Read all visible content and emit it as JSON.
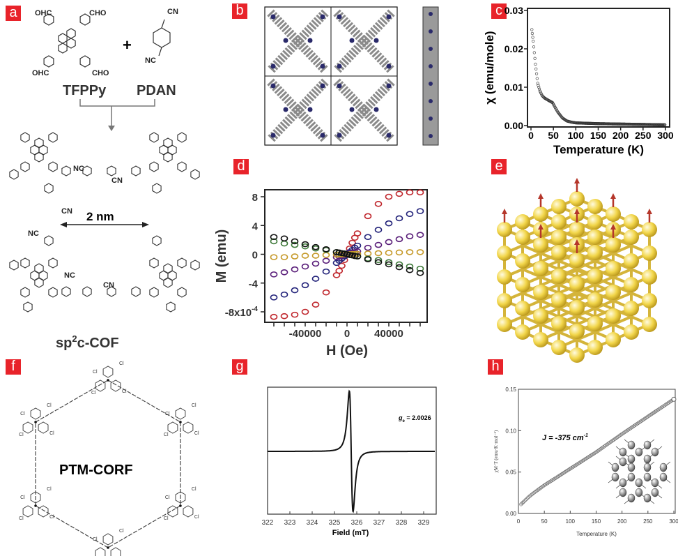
{
  "panel_labels": [
    "a",
    "b",
    "c",
    "d",
    "e",
    "f",
    "g",
    "h"
  ],
  "panel_a": {
    "aldehyde_groups": [
      "OHC",
      "CHO",
      "OHC",
      "CHO"
    ],
    "nitrile_groups": [
      "CN",
      "NC"
    ],
    "plus": "+",
    "monomer1": "TFPPy",
    "monomer2": "PDAN",
    "pore_size": "2 nm",
    "product_prefix": "sp",
    "product_sup": "2",
    "product_suffix": "c-COF",
    "linker_labels": [
      "NC",
      "CN",
      "CN",
      "NC",
      "NC",
      "CN"
    ]
  },
  "panel_f": {
    "title": "PTM-CORF",
    "atom": "Cl"
  },
  "colors": {
    "label_bg": "#e8232a",
    "red": "#c0282e",
    "navy": "#23237a",
    "purple": "#5a1f7a",
    "gold": "#c69a2a",
    "green": "#3f7a3a",
    "black": "#111111",
    "sphere": "#f2d64a"
  },
  "chart_data": [
    {
      "id": "c",
      "type": "scatter",
      "xlabel": "Temperature (K)",
      "ylabel": "χ (emu/mole)",
      "xlim": [
        0,
        300
      ],
      "ylim": [
        0,
        0.03
      ],
      "xticks": [
        "0",
        "50",
        "100",
        "150",
        "200",
        "250",
        "300"
      ],
      "yticks": [
        "0.00",
        "0.01",
        "0.02",
        "0.03"
      ],
      "x": [
        2,
        5,
        10,
        15,
        20,
        25,
        30,
        40,
        48,
        55,
        60,
        70,
        80,
        90,
        100,
        150,
        200,
        250,
        300
      ],
      "y": [
        0.025,
        0.022,
        0.016,
        0.011,
        0.009,
        0.0078,
        0.0072,
        0.0065,
        0.006,
        0.0045,
        0.0035,
        0.002,
        0.0012,
        0.0009,
        0.0007,
        0.0005,
        0.0004,
        0.0003,
        0.0002
      ]
    },
    {
      "id": "d",
      "type": "scatter",
      "xlabel": "H (Oe)",
      "ylabel": "M (emu)",
      "xlim": [
        -75000,
        75000
      ],
      "ylim": [
        -9.5,
        9.5
      ],
      "yunit_note": "x10^-4",
      "xticks": [
        "-40000",
        "0",
        "40000"
      ],
      "yticks": [
        "-8x10",
        "-4",
        "0",
        "4",
        "8"
      ],
      "ytick_exp": "-4",
      "x": [
        -70000,
        -60000,
        -50000,
        -40000,
        -30000,
        -20000,
        -10000,
        -7500,
        -5000,
        -2500,
        0,
        2500,
        5000,
        7500,
        10000,
        20000,
        30000,
        40000,
        50000,
        60000,
        70000
      ],
      "series": [
        {
          "name": "red",
          "color": "#c0282e",
          "values": [
            -8.7,
            -8.6,
            -8.4,
            -8.0,
            -7.0,
            -5.3,
            -2.9,
            -2.3,
            -1.6,
            -0.8,
            0,
            0.8,
            1.6,
            2.3,
            2.9,
            5.3,
            7.0,
            8.0,
            8.4,
            8.6,
            8.6
          ]
        },
        {
          "name": "navy",
          "color": "#23237a",
          "values": [
            -6.0,
            -5.6,
            -5.0,
            -4.3,
            -3.4,
            -2.4,
            -1.2,
            -0.9,
            -0.6,
            -0.3,
            0,
            0.3,
            0.6,
            0.9,
            1.2,
            2.4,
            3.4,
            4.3,
            5.0,
            5.6,
            6.0
          ]
        },
        {
          "name": "purple",
          "color": "#5a1f7a",
          "values": [
            -2.8,
            -2.5,
            -2.1,
            -1.7,
            -1.3,
            -0.9,
            -0.4,
            -0.3,
            -0.2,
            -0.1,
            0,
            0.1,
            0.2,
            0.3,
            0.4,
            0.9,
            1.3,
            1.7,
            2.1,
            2.5,
            2.7
          ]
        },
        {
          "name": "gold",
          "color": "#c69a2a",
          "values": [
            -0.4,
            -0.4,
            -0.3,
            -0.2,
            -0.2,
            -0.1,
            -0.05,
            -0.04,
            -0.03,
            -0.01,
            0,
            0.01,
            0.03,
            0.04,
            0.05,
            0.1,
            0.15,
            0.2,
            0.25,
            0.3,
            0.3
          ]
        },
        {
          "name": "green",
          "color": "#3f7a3a",
          "values": [
            1.8,
            1.5,
            1.3,
            1.1,
            0.8,
            0.6,
            0.3,
            0.2,
            0.15,
            0.1,
            0,
            -0.1,
            -0.15,
            -0.2,
            -0.3,
            -0.6,
            -0.8,
            -1.1,
            -1.4,
            -1.7,
            -2.0
          ]
        },
        {
          "name": "black",
          "color": "#111111",
          "values": [
            2.4,
            2.2,
            1.8,
            1.4,
            1.0,
            0.7,
            0.3,
            0.25,
            0.15,
            0.1,
            0,
            -0.1,
            -0.15,
            -0.25,
            -0.3,
            -0.7,
            -1.1,
            -1.4,
            -1.8,
            -2.2,
            -2.6
          ]
        }
      ]
    },
    {
      "id": "g",
      "type": "line",
      "xlabel": "Field (mT)",
      "ylabel": "",
      "xlim": [
        322,
        329.5
      ],
      "ylim": [
        -1.2,
        1.2
      ],
      "xticks": [
        "322",
        "323",
        "324",
        "325",
        "326",
        "327",
        "328",
        "329"
      ],
      "annotation_g": "g",
      "annotation_sub": "e",
      "annotation_value": " = 2.0026",
      "center": 325.75,
      "peak_to_peak_width": 0.25,
      "positive_peak": 1,
      "negative_peak": -1
    },
    {
      "id": "h",
      "type": "scatter",
      "xlabel": "Temperature (K)",
      "ylabel": "χM·T (emu·K·mol⁻¹)",
      "xlim": [
        0,
        300
      ],
      "ylim": [
        0,
        0.15
      ],
      "xticks": [
        "0",
        "50",
        "100",
        "150",
        "200",
        "250",
        "300"
      ],
      "yticks": [
        "0.00",
        "0.05",
        "0.10",
        "0.15"
      ],
      "annotation": "J = -375 cm",
      "annotation_sup": "-1",
      "x": [
        5,
        10,
        20,
        30,
        50,
        100,
        150,
        200,
        250,
        300
      ],
      "y": [
        0.011,
        0.014,
        0.02,
        0.025,
        0.034,
        0.054,
        0.074,
        0.096,
        0.117,
        0.138
      ]
    }
  ]
}
